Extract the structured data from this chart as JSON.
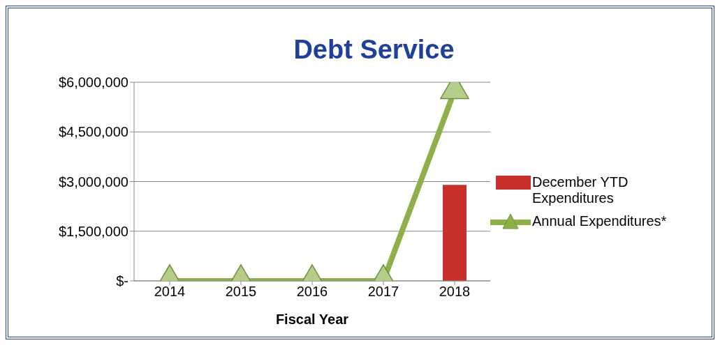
{
  "chart_data": {
    "type": "bar",
    "title": "Debt Service",
    "xlabel": "Fiscal Year",
    "categories": [
      "2014",
      "2015",
      "2016",
      "2017",
      "2018"
    ],
    "series": [
      {
        "name": "December YTD Expenditures",
        "color": "#c8302c",
        "values": [
          null,
          null,
          null,
          null,
          2900000
        ]
      },
      {
        "name": "Annual Expenditures*",
        "type": "line",
        "color": "#8db04b",
        "marker": "triangle",
        "values": [
          0,
          0,
          0,
          0,
          5750000
        ]
      }
    ],
    "ylim": [
      0,
      6000000
    ],
    "yticks": [
      {
        "value": 0,
        "label": "$-"
      },
      {
        "value": 1500000,
        "label": "$1,500,000"
      },
      {
        "value": 3000000,
        "label": "$3,000,000"
      },
      {
        "value": 4500000,
        "label": "$4,500,000"
      },
      {
        "value": 6000000,
        "label": "$6,000,000"
      }
    ],
    "grid": "y",
    "legend": "right"
  }
}
